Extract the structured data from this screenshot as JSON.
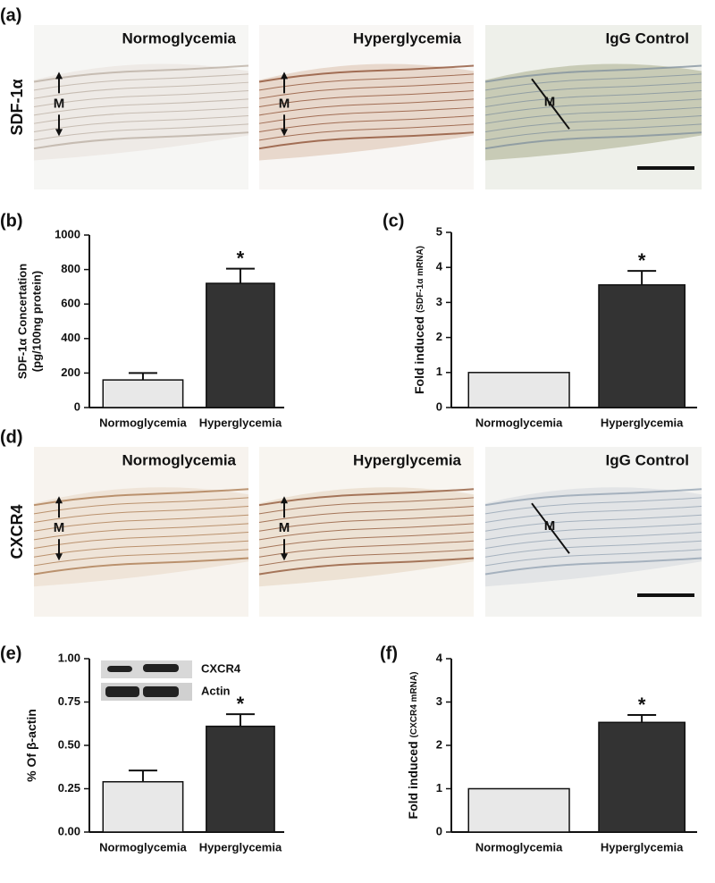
{
  "image_rows": [
    {
      "panel": "(a)",
      "row_label": "SDF-1α",
      "images": [
        {
          "title": "Normoglycemia",
          "marker": "M"
        },
        {
          "title": "Hyperglycemia",
          "marker": "M"
        },
        {
          "title": "IgG Control",
          "marker": "M"
        }
      ]
    },
    {
      "panel": "(d)",
      "row_label": "CXCR4",
      "images": [
        {
          "title": "Normoglycemia",
          "marker": "M"
        },
        {
          "title": "Hyperglycemia",
          "marker": "M"
        },
        {
          "title": "IgG Control",
          "marker": "M"
        }
      ]
    }
  ],
  "chart_data": [
    {
      "panel": "(b)",
      "type": "bar",
      "ylabel": "SDF-1α Concertation",
      "ylabel_line2": "(pg/100ng protein)",
      "categories": [
        "Normoglycemia",
        "Hyperglycemia"
      ],
      "values": [
        160,
        720
      ],
      "errors": [
        40,
        85
      ],
      "colors": [
        "#e8e8e8",
        "#333333"
      ],
      "annotation": "*",
      "ylim": [
        0,
        1000
      ],
      "yticks": [
        0,
        200,
        400,
        600,
        800,
        1000
      ]
    },
    {
      "panel": "(c)",
      "type": "bar",
      "ylabel": "Fold induced",
      "ylabel_note": "(SDF-1α mRNA)",
      "categories": [
        "Normoglycemia",
        "Hyperglycemia"
      ],
      "values": [
        1,
        3.5
      ],
      "errors": [
        null,
        0.4
      ],
      "colors": [
        "#e8e8e8",
        "#333333"
      ],
      "annotation": "*",
      "ylim": [
        0,
        5
      ],
      "yticks": [
        0,
        1,
        2,
        3,
        4,
        5
      ]
    },
    {
      "panel": "(e)",
      "type": "bar",
      "ylabel": "% Of β-actin",
      "categories": [
        "Normoglycemia",
        "Hyperglycemia"
      ],
      "values": [
        0.29,
        0.61
      ],
      "errors": [
        0.065,
        0.07
      ],
      "colors": [
        "#e8e8e8",
        "#333333"
      ],
      "annotation": "*",
      "inset_labels": [
        "CXCR4",
        "Actin"
      ],
      "ylim": [
        0,
        1
      ],
      "yticks": [
        {
          "value": 0,
          "label": "0.00"
        },
        {
          "value": 0.25,
          "label": "0.25"
        },
        {
          "value": 0.5,
          "label": "0.50"
        },
        {
          "value": 0.75,
          "label": "0.75"
        },
        {
          "value": 1,
          "label": "1.00"
        }
      ]
    },
    {
      "panel": "(f)",
      "type": "bar",
      "ylabel": "Fold induced",
      "ylabel_note": "(CXCR4 mRNA)",
      "categories": [
        "Normoglycemia",
        "Hyperglycemia"
      ],
      "values": [
        1,
        2.53
      ],
      "errors": [
        null,
        0.17
      ],
      "colors": [
        "#e8e8e8",
        "#333333"
      ],
      "annotation": "*",
      "ylim": [
        0,
        4
      ],
      "yticks": [
        0,
        1,
        2,
        3,
        4
      ]
    }
  ]
}
